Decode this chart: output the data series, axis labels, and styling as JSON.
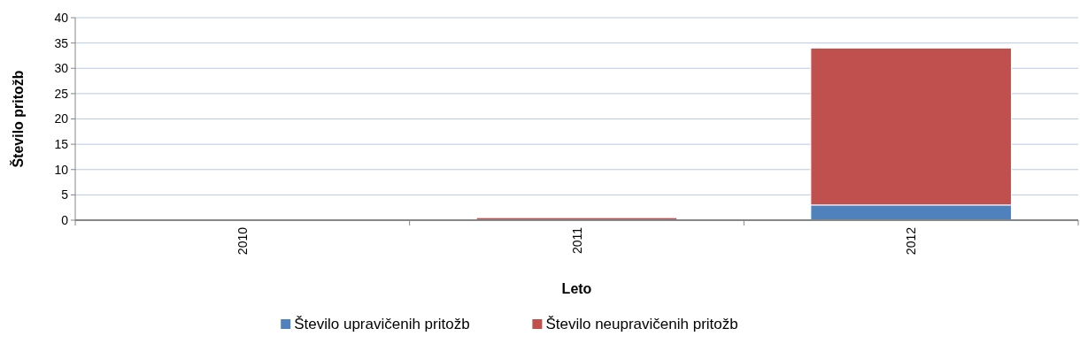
{
  "chart_data": {
    "type": "bar",
    "stacked": true,
    "xlabel": "Leto",
    "ylabel": "Število pritožb",
    "categories": [
      "2010",
      "2011",
      "2012"
    ],
    "series": [
      {
        "name": "Število upravičenih pritožb",
        "color": "#4f81bd",
        "values": [
          0,
          0,
          3
        ]
      },
      {
        "name": "Število neupravičenih pritožb",
        "color": "#c0504d",
        "values": [
          0,
          0.5,
          31
        ]
      }
    ],
    "ylim": [
      0,
      40
    ],
    "yticks": [
      0,
      5,
      10,
      15,
      20,
      25,
      30,
      35,
      40
    ],
    "grid": "y",
    "legend": "bottom"
  }
}
